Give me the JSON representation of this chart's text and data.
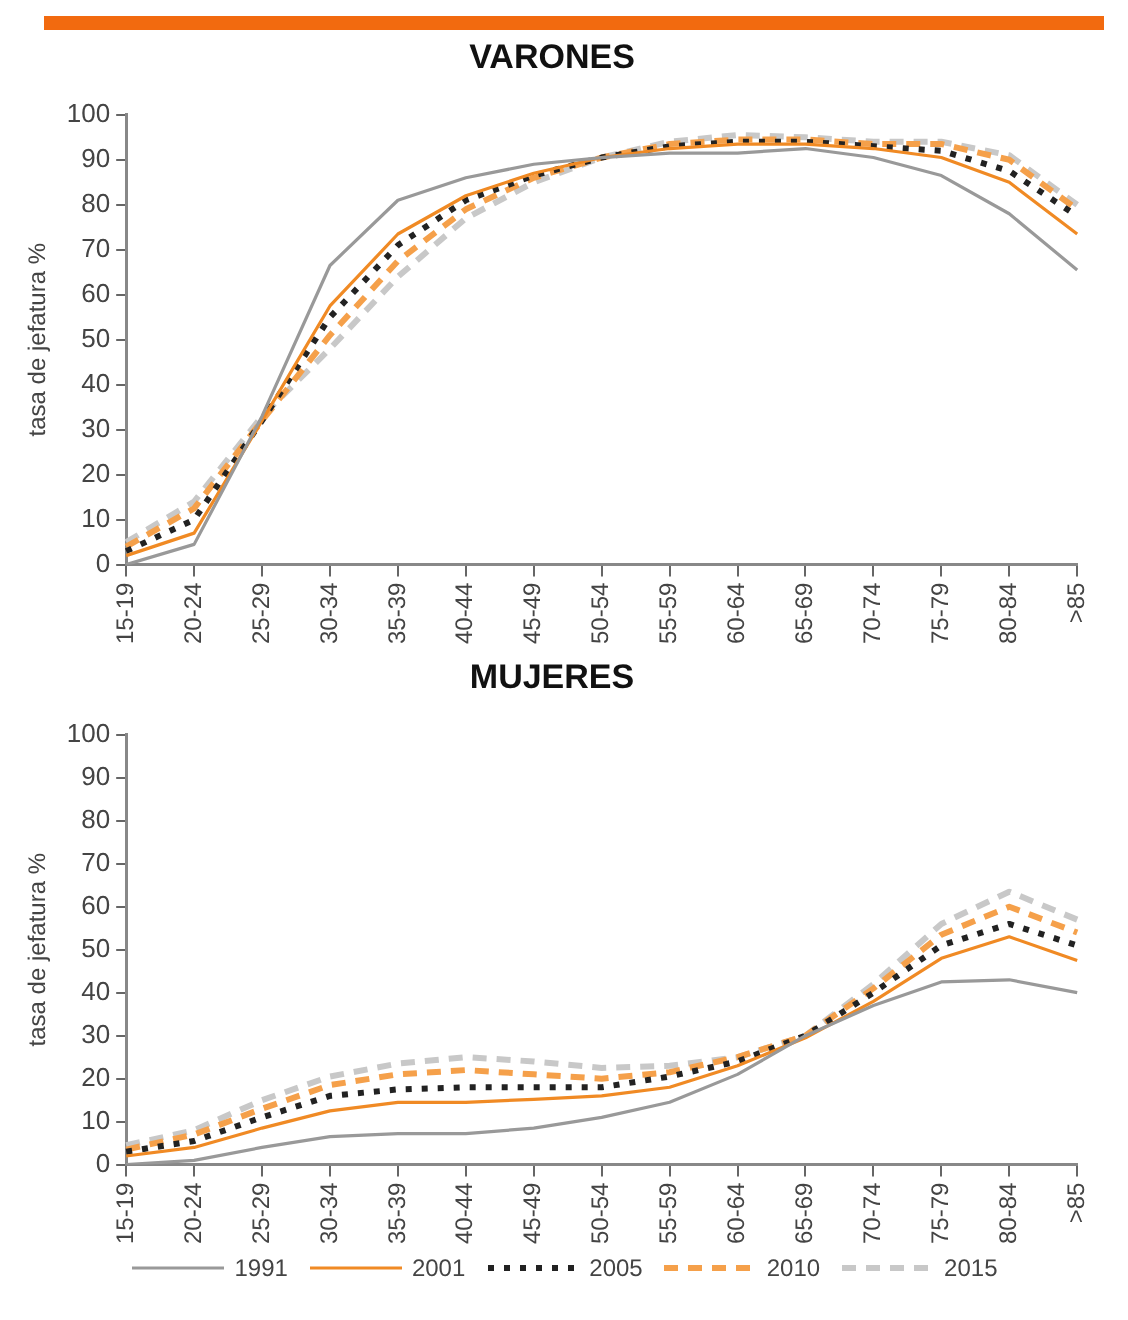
{
  "chart_data": [
    {
      "type": "line",
      "title": "VARONES",
      "ylabel": "tasa de jefatura %",
      "categories": [
        "15-19",
        "20-24",
        "25-29",
        "30-34",
        "35-39",
        "40-44",
        "45-49",
        "50-54",
        "55-59",
        "60-64",
        "65-69",
        "70-74",
        "75-79",
        "80-84",
        ">85"
      ],
      "series": [
        {
          "color": "#999999",
          "line_style": "solid",
          "values": [
            0,
            4.5,
            33,
            66.5,
            81,
            86,
            89,
            90.5,
            91.5,
            91.5,
            92.5,
            90.5,
            86.5,
            78,
            65.5
          ]
        },
        {
          "color": "#f08a24",
          "line_style": "solid",
          "values": [
            2,
            7,
            32,
            57.5,
            73.5,
            82,
            87,
            90.5,
            92.5,
            93.5,
            93.5,
            92.5,
            90.5,
            85,
            73.5
          ]
        },
        {
          "color": "#222222",
          "line_style": "dotted",
          "values": [
            3,
            10,
            32,
            55,
            71,
            81,
            86.5,
            90.5,
            93,
            94,
            94,
            93,
            92,
            87.5,
            77.5
          ]
        },
        {
          "color": "#f5a04a",
          "line_style": "dashed",
          "values": [
            4,
            12.5,
            32,
            51,
            67.5,
            79,
            86,
            90.5,
            93.5,
            94.5,
            94.5,
            93.5,
            93.5,
            90,
            79
          ]
        },
        {
          "color": "#c8c8c8",
          "line_style": "dashed",
          "values": [
            5,
            14,
            33,
            48,
            64,
            77,
            85,
            90.5,
            94,
            95.5,
            95,
            94,
            94,
            91,
            80
          ]
        }
      ],
      "ylim": [
        0,
        100
      ],
      "yticks": [
        0,
        10,
        20,
        30,
        40,
        50,
        60,
        70,
        80,
        90,
        100
      ],
      "marker": "none"
    },
    {
      "type": "line",
      "title": "MUJERES",
      "ylabel": "tasa de jefatura %",
      "categories": [
        "15-19",
        "20-24",
        "25-29",
        "30-34",
        "35-39",
        "40-44",
        "45-49",
        "50-54",
        "55-59",
        "60-64",
        "65-69",
        "70-74",
        "75-79",
        "80-84",
        ">85"
      ],
      "series": [
        {
          "name": "1991",
          "color": "#999999",
          "line_style": "solid",
          "values": [
            0,
            1,
            4,
            6.5,
            7.2,
            7.2,
            8.5,
            11,
            14.5,
            21,
            30,
            37,
            42.5,
            43,
            40
          ]
        },
        {
          "name": "2001",
          "color": "#f08a24",
          "line_style": "solid",
          "values": [
            2,
            4,
            8.5,
            12.5,
            14.5,
            14.5,
            15.2,
            16,
            18,
            23,
            29.5,
            38,
            48,
            53,
            47.5
          ]
        },
        {
          "name": "2005",
          "color": "#222222",
          "line_style": "dotted",
          "values": [
            3,
            5.5,
            11,
            16,
            17.5,
            18,
            18,
            18,
            20.5,
            24,
            30,
            40,
            51,
            56,
            51
          ]
        },
        {
          "name": "2010",
          "color": "#f5a04a",
          "line_style": "dashed",
          "values": [
            3.5,
            7,
            13,
            18.5,
            21,
            22,
            21,
            20,
            21.5,
            25,
            30,
            41,
            53.5,
            60,
            54
          ]
        },
        {
          "name": "2015",
          "color": "#c8c8c8",
          "line_style": "dashed",
          "values": [
            4.5,
            8,
            15,
            20.5,
            23.5,
            25,
            24,
            22.5,
            23,
            25,
            30,
            42,
            56,
            63.5,
            57
          ]
        }
      ],
      "ylim": [
        0,
        100
      ],
      "yticks": [
        0,
        10,
        20,
        30,
        40,
        50,
        60,
        70,
        80,
        90,
        100
      ],
      "marker": "none",
      "legend": "bottom"
    }
  ]
}
